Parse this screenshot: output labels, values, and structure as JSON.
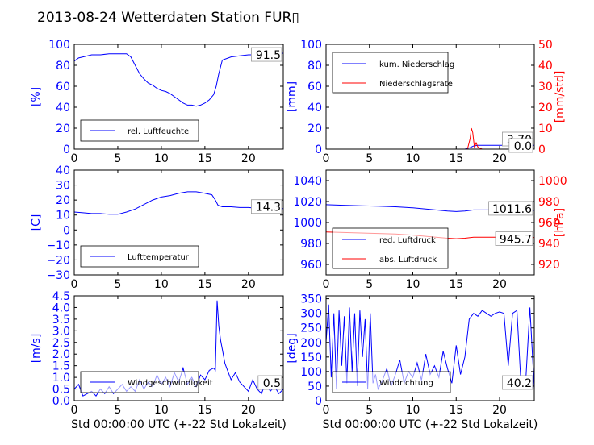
{
  "figure": {
    "title": "2013-08-24 Wetterdaten Station FUR▯"
  },
  "colors": {
    "primary": "#0000ff",
    "secondary": "#ff0000",
    "axis": "#000000",
    "background": "#ffffff"
  },
  "chart_data": [
    {
      "id": "humidity",
      "type": "line",
      "xlim": [
        0,
        24
      ],
      "xticks": [
        "0",
        "5",
        "10",
        "15",
        "20"
      ],
      "xlabel": "",
      "ylabel": "[%]",
      "ylim": [
        0,
        100
      ],
      "yticks": [
        "0",
        "20",
        "40",
        "60",
        "80",
        "100"
      ],
      "legend": {
        "placement": "lower-left",
        "entries": [
          "rel. Luftfeuchte"
        ]
      },
      "readout": "91.5",
      "series": [
        {
          "name": "rel. Luftfeuchte",
          "color": "#0000ff",
          "x": [
            0,
            0.5,
            1,
            2,
            3,
            4,
            5,
            6,
            6.5,
            7,
            7.5,
            8,
            8.5,
            9,
            9.5,
            10,
            10.5,
            11,
            11.5,
            12,
            12.5,
            13,
            13.5,
            14,
            14.5,
            15,
            15.5,
            16,
            16.3,
            16.6,
            17,
            18,
            19,
            20,
            21,
            22,
            23,
            24
          ],
          "y": [
            84,
            87,
            88,
            90,
            90,
            91,
            91,
            91,
            88,
            80,
            72,
            67,
            63,
            61,
            58,
            56,
            55,
            53,
            50,
            47,
            44,
            42,
            42,
            41,
            42,
            44,
            47,
            52,
            60,
            72,
            85,
            88,
            89,
            90,
            90,
            91,
            91,
            91.5
          ]
        }
      ]
    },
    {
      "id": "precipitation",
      "type": "line",
      "xlim": [
        0,
        24
      ],
      "xticks": [
        "0",
        "5",
        "10",
        "15",
        "20"
      ],
      "xlabel": "",
      "ylabel": "[mm]",
      "ylim": [
        0,
        100
      ],
      "yticks": [
        "0",
        "20",
        "40",
        "60",
        "80",
        "100"
      ],
      "ylabel2": "[mm/std]",
      "ylim2": [
        0,
        50
      ],
      "yticks2": [
        "0",
        "10",
        "20",
        "30",
        "40",
        "50"
      ],
      "legend": {
        "placement": "top-left",
        "entries": [
          "kum. Niederschlag",
          "Niederschlagsrate"
        ]
      },
      "readout": "3.70",
      "readout2": "0.0",
      "series": [
        {
          "name": "kum. Niederschlag",
          "color": "#0000ff",
          "axis": "left",
          "x": [
            0,
            16,
            16.6,
            17,
            17.5,
            18,
            24
          ],
          "y": [
            0,
            0,
            1.5,
            3,
            3.6,
            3.7,
            3.7
          ]
        },
        {
          "name": "Niederschlagsrate",
          "color": "#ff0000",
          "axis": "right",
          "x": [
            0,
            16.3,
            16.6,
            16.75,
            16.9,
            17.1,
            17.3,
            17.5,
            17.7,
            18,
            24
          ],
          "y": [
            0,
            0,
            5,
            10,
            8,
            1,
            3,
            1,
            0.5,
            0,
            0
          ]
        }
      ]
    },
    {
      "id": "temperature",
      "type": "line",
      "xlim": [
        0,
        24
      ],
      "xticks": [
        "0",
        "5",
        "10",
        "15",
        "20"
      ],
      "xlabel": "",
      "ylabel": "[C]",
      "ylim": [
        -30,
        40
      ],
      "yticks": [
        "−30",
        "−20",
        "−10",
        "0",
        "10",
        "20",
        "30",
        "40"
      ],
      "legend": {
        "placement": "lower-left",
        "entries": [
          "Lufttemperatur"
        ]
      },
      "readout": "14.3",
      "series": [
        {
          "name": "Lufttemperatur",
          "color": "#0000ff",
          "x": [
            0,
            1,
            2,
            3,
            4,
            5,
            6,
            7,
            8,
            9,
            10,
            11,
            12,
            13,
            14,
            15,
            15.8,
            16.2,
            16.5,
            17,
            18,
            19,
            20,
            21,
            22,
            23,
            24
          ],
          "y": [
            12,
            11.5,
            11,
            11,
            10.5,
            10.5,
            12,
            14,
            17,
            20,
            22,
            23,
            24.5,
            25.5,
            25.5,
            24.5,
            23.5,
            20,
            16.5,
            15.5,
            15.5,
            15,
            15,
            14.5,
            14.5,
            14.3,
            14.3
          ]
        }
      ]
    },
    {
      "id": "pressure",
      "type": "line",
      "xlim": [
        0,
        24
      ],
      "xticks": [
        "0",
        "5",
        "10",
        "15",
        "20"
      ],
      "xlabel": "",
      "ylabel": "",
      "ylim": [
        950,
        1050
      ],
      "yticks": [
        "960",
        "980",
        "1000",
        "1020",
        "1040"
      ],
      "ylabel2": "[hPa]",
      "ylim2": [
        910,
        1010
      ],
      "yticks2": [
        "920",
        "940",
        "960",
        "980",
        "1000"
      ],
      "legend": {
        "placement": "lower-left",
        "entries": [
          "red. Luftdruck",
          "abs. Luftdruck"
        ]
      },
      "readout": "1011.6",
      "readout2": "945.7",
      "series": [
        {
          "name": "red. Luftdruck",
          "color": "#0000ff",
          "axis": "left",
          "x": [
            0,
            2,
            4,
            6,
            8,
            10,
            12,
            14,
            15,
            16,
            17,
            18,
            20,
            22,
            24
          ],
          "y": [
            1017,
            1016.5,
            1016,
            1015.5,
            1015,
            1014,
            1012.5,
            1011,
            1010.5,
            1011,
            1012,
            1012,
            1012,
            1011.8,
            1011.6
          ]
        },
        {
          "name": "abs. Luftdruck",
          "color": "#ff0000",
          "axis": "right",
          "x": [
            0,
            2,
            4,
            6,
            8,
            10,
            12,
            14,
            15,
            16,
            17,
            18,
            20,
            22,
            24
          ],
          "y": [
            951,
            950.5,
            950,
            949.5,
            949,
            948,
            946.5,
            945,
            944.5,
            945,
            946,
            946,
            946,
            945.8,
            945.7
          ]
        }
      ]
    },
    {
      "id": "wind-speed",
      "type": "line",
      "xlim": [
        0,
        24
      ],
      "xticks": [
        "0",
        "5",
        "10",
        "15",
        "20"
      ],
      "xlabel": "Std 00:00:00 UTC (+-22 Std Lokalzeit)",
      "ylabel": "[m/s]",
      "ylim": [
        0,
        4.5
      ],
      "yticks": [
        "0.0",
        "0.5",
        "1.0",
        "1.5",
        "2.0",
        "2.5",
        "3.0",
        "3.5",
        "4.0",
        "4.5"
      ],
      "legend": {
        "placement": "lower-left",
        "entries": [
          "Windgeschwindigkeit"
        ]
      },
      "readout": "0.5",
      "series": [
        {
          "name": "Windgeschwindigkeit",
          "color": "#0000ff",
          "x": [
            0,
            0.5,
            1,
            1.5,
            2,
            2.5,
            3,
            3.5,
            4,
            4.5,
            5,
            5.5,
            6,
            6.5,
            7,
            7.5,
            8,
            8.5,
            9,
            9.5,
            10,
            10.5,
            11,
            11.5,
            12,
            12.5,
            13,
            13.5,
            14,
            14.5,
            15,
            15.5,
            16,
            16.2,
            16.4,
            16.6,
            16.8,
            17,
            17.3,
            17.6,
            18,
            18.5,
            19,
            19.5,
            20,
            20.5,
            21,
            21.5,
            22,
            22.5,
            23,
            23.5,
            24
          ],
          "y": [
            0.5,
            0.7,
            0.2,
            0.3,
            0.4,
            0.2,
            0.5,
            0.3,
            0.6,
            0.3,
            0.5,
            0.7,
            0.4,
            0.6,
            0.4,
            0.9,
            0.5,
            0.8,
            0.6,
            1.1,
            0.7,
            1.0,
            0.6,
            1.2,
            0.8,
            1.4,
            0.7,
            1.0,
            0.6,
            1.1,
            0.9,
            1.3,
            1.4,
            1.3,
            4.3,
            3.2,
            2.6,
            2.2,
            1.6,
            1.3,
            0.9,
            1.2,
            0.8,
            0.6,
            0.4,
            0.9,
            0.5,
            0.3,
            0.8,
            0.4,
            0.6,
            0.3,
            0.5
          ]
        }
      ]
    },
    {
      "id": "wind-direction",
      "type": "line",
      "xlim": [
        0,
        24
      ],
      "xticks": [
        "0",
        "5",
        "10",
        "15",
        "20"
      ],
      "xlabel": "Std 00:00:00 UTC (+-22 Std Lokalzeit)",
      "ylabel": "[deg]",
      "ylim": [
        0,
        360
      ],
      "yticks": [
        "0",
        "50",
        "100",
        "150",
        "200",
        "250",
        "300",
        "350"
      ],
      "legend": {
        "placement": "lower-left",
        "entries": [
          "Windrichtung"
        ]
      },
      "readout": "40.2",
      "series": [
        {
          "name": "Windrichtung",
          "color": "#0000ff",
          "x": [
            0,
            0.3,
            0.6,
            0.9,
            1.2,
            1.5,
            1.8,
            2.1,
            2.4,
            2.7,
            3,
            3.3,
            3.6,
            3.9,
            4.2,
            4.5,
            4.8,
            5.1,
            5.4,
            5.7,
            6,
            6.5,
            7,
            7.5,
            8,
            8.5,
            9,
            9.5,
            10,
            10.5,
            11,
            11.5,
            12,
            12.5,
            13,
            13.5,
            14,
            14.5,
            15,
            15.5,
            16,
            16.5,
            17,
            17.5,
            18,
            18.5,
            19,
            19.5,
            20,
            20.5,
            21,
            21.5,
            22,
            22.5,
            23,
            23.5,
            24
          ],
          "y": [
            200,
            330,
            80,
            300,
            40,
            310,
            120,
            290,
            60,
            320,
            100,
            300,
            50,
            310,
            150,
            280,
            40,
            300,
            60,
            90,
            40,
            70,
            110,
            50,
            90,
            140,
            60,
            100,
            80,
            130,
            70,
            160,
            90,
            120,
            80,
            170,
            110,
            60,
            190,
            90,
            150,
            280,
            300,
            290,
            310,
            300,
            290,
            300,
            305,
            300,
            120,
            300,
            310,
            40,
            60,
            320,
            40
          ]
        }
      ]
    }
  ]
}
